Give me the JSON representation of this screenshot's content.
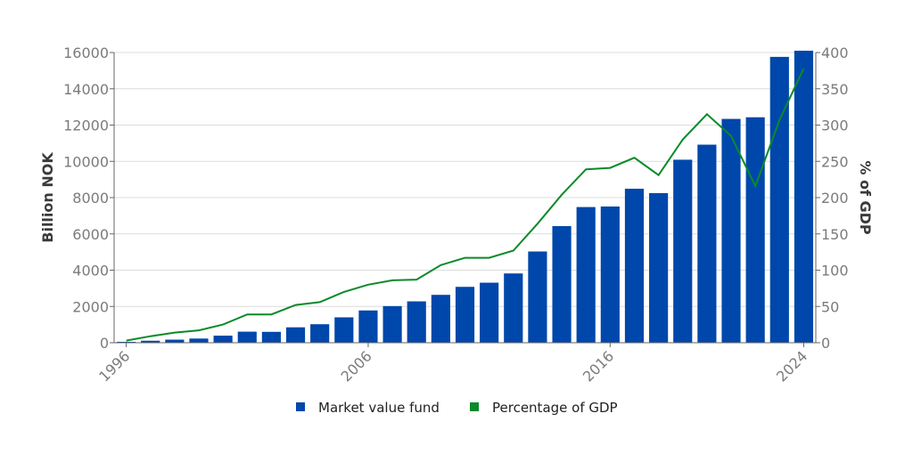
{
  "chart_data": {
    "type": "bar",
    "x": [
      1996,
      1997,
      1998,
      1999,
      2000,
      2001,
      2002,
      2003,
      2004,
      2005,
      2006,
      2007,
      2008,
      2009,
      2010,
      2011,
      2012,
      2013,
      2014,
      2015,
      2016,
      2017,
      2018,
      2019,
      2020,
      2021,
      2022,
      2023,
      2024
    ],
    "x_tick_labels": [
      "1996",
      "2006",
      "2016",
      "2024"
    ],
    "ylabel_left": "Billion NOK",
    "ylabel_right": "% of GDP",
    "ylim_left": [
      0,
      16000
    ],
    "ylim_right": [
      0,
      400
    ],
    "yticks_left": [
      0,
      2000,
      4000,
      6000,
      8000,
      10000,
      12000,
      14000,
      16000
    ],
    "yticks_right": [
      0,
      50,
      100,
      150,
      200,
      250,
      300,
      350,
      400
    ],
    "grid": true,
    "legend_position": "bottom",
    "series": [
      {
        "name": "Market value fund",
        "type": "bar",
        "axis": "left",
        "color": "#0047ab",
        "values": [
          50,
          110,
          170,
          230,
          390,
          610,
          600,
          850,
          1020,
          1400,
          1780,
          2020,
          2280,
          2640,
          3080,
          3310,
          3820,
          5030,
          6430,
          7480,
          7510,
          8490,
          8250,
          10090,
          10920,
          12340,
          12430,
          15760,
          16100
        ]
      },
      {
        "name": "Percentage of GDP",
        "type": "line",
        "axis": "right",
        "color": "#0a8a2a",
        "values": [
          3,
          9,
          14,
          17,
          25,
          39,
          39,
          52,
          56,
          70,
          80,
          86,
          87,
          107,
          117,
          117,
          127,
          164,
          204,
          239,
          241,
          255,
          231,
          280,
          315,
          285,
          216,
          307,
          378
        ]
      }
    ]
  }
}
